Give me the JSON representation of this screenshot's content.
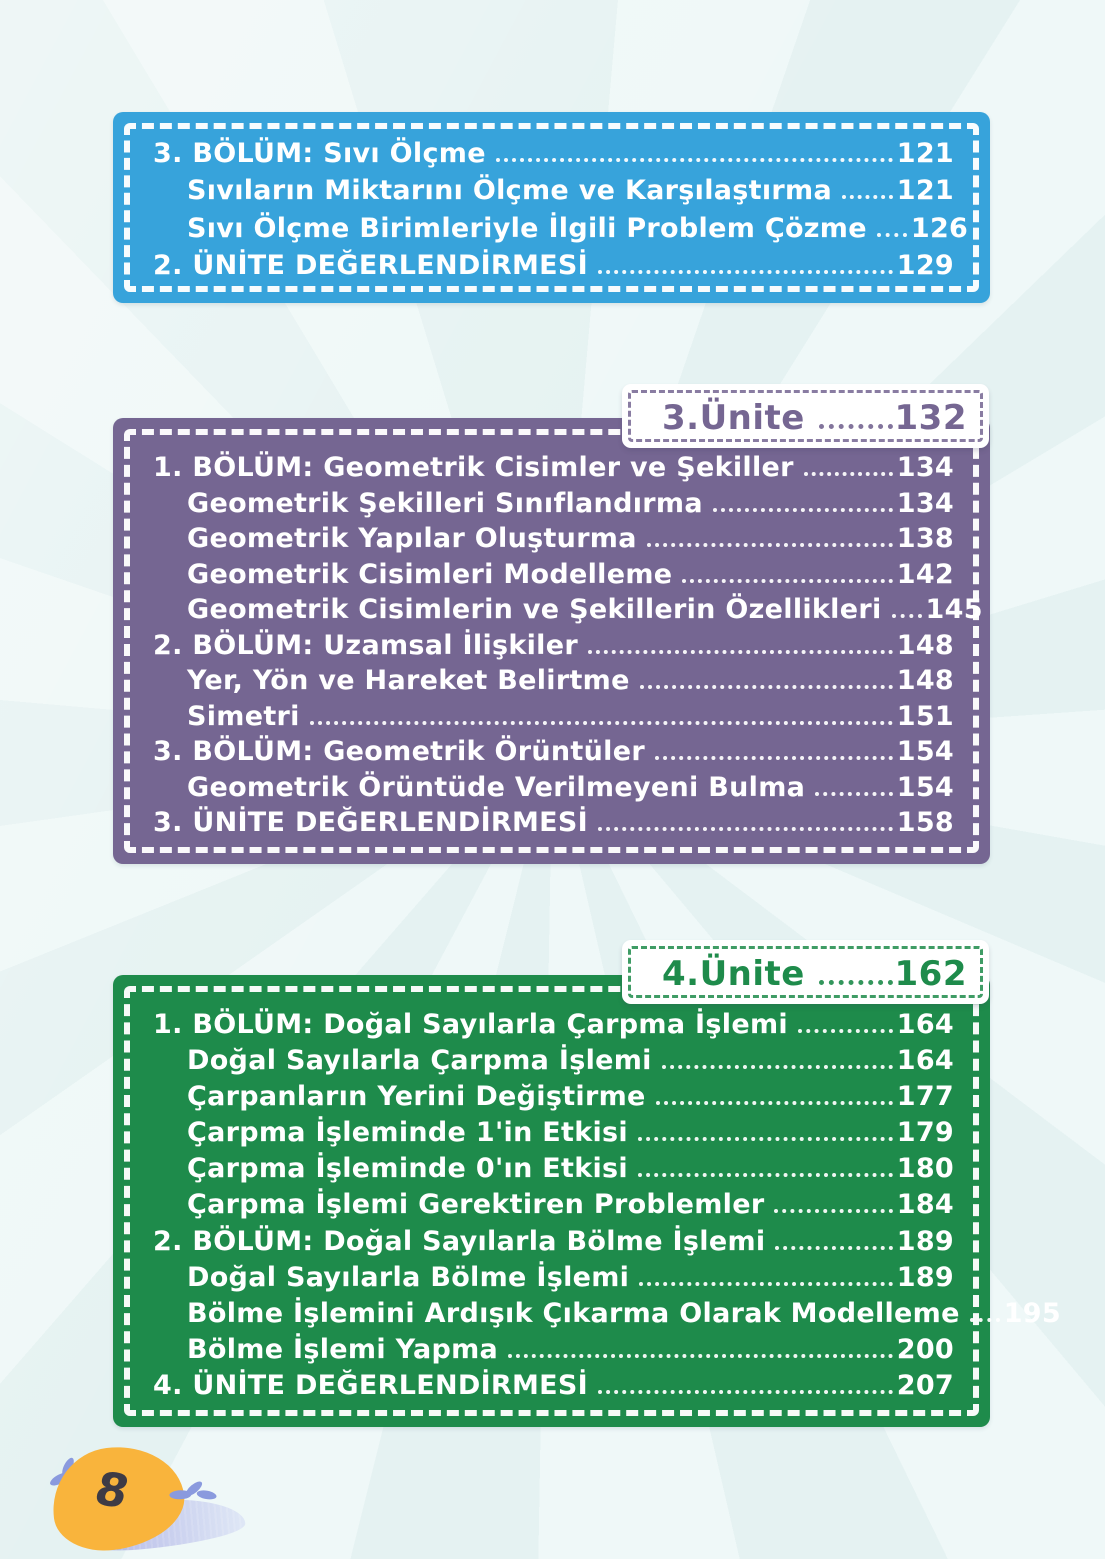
{
  "colors": {
    "background": "#edf6f5",
    "ray": "#e3f1f1",
    "unit2_blue": "#37a3db",
    "unit3_purple": "#756692",
    "unit4_green": "#1e8b4b",
    "page_blob_yellow": "#f9b43c",
    "page_number_text": "#3e3b45",
    "leaf_blue": "#8a9ade"
  },
  "sections": [
    {
      "name": "unit-2-remainder",
      "color": "#37a3db",
      "tab": null,
      "entries": [
        {
          "level": 1,
          "label": "3. BÖLÜM: Sıvı Ölçme",
          "page": "121"
        },
        {
          "level": 2,
          "label": "Sıvıların Miktarını Ölçme ve Karşılaştırma",
          "page": "121"
        },
        {
          "level": 2,
          "label": "Sıvı Ölçme Birimleriyle İlgili Problem Çözme",
          "page": "126"
        },
        {
          "level": 1,
          "label": "2. ÜNİTE DEĞERLENDİRMESİ",
          "page": "129"
        }
      ]
    },
    {
      "name": "unit-3",
      "color": "#756692",
      "tab": {
        "title": "3.Ünite",
        "page": "132"
      },
      "entries": [
        {
          "level": 1,
          "label": "1. BÖLÜM: Geometrik Cisimler ve Şekiller",
          "page": "134"
        },
        {
          "level": 2,
          "label": "Geometrik Şekilleri Sınıflandırma",
          "page": "134"
        },
        {
          "level": 2,
          "label": "Geometrik Yapılar Oluşturma",
          "page": "138"
        },
        {
          "level": 2,
          "label": "Geometrik Cisimleri Modelleme",
          "page": "142"
        },
        {
          "level": 2,
          "label": "Geometrik Cisimlerin ve Şekillerin Özellikleri",
          "page": "145"
        },
        {
          "level": 1,
          "label": "2. BÖLÜM: Uzamsal İlişkiler",
          "page": "148"
        },
        {
          "level": 2,
          "label": "Yer, Yön ve Hareket Belirtme",
          "page": "148"
        },
        {
          "level": 2,
          "label": "Simetri",
          "page": "151"
        },
        {
          "level": 1,
          "label": "3. BÖLÜM: Geometrik Örüntüler",
          "page": "154"
        },
        {
          "level": 2,
          "label": "Geometrik Örüntüde Verilmeyeni Bulma",
          "page": "154"
        },
        {
          "level": 1,
          "label": "3. ÜNİTE DEĞERLENDİRMESİ",
          "page": "158"
        }
      ]
    },
    {
      "name": "unit-4",
      "color": "#1e8b4b",
      "tab": {
        "title": "4.Ünite",
        "page": "162"
      },
      "entries": [
        {
          "level": 1,
          "label": "1. BÖLÜM: Doğal Sayılarla Çarpma İşlemi",
          "page": "164"
        },
        {
          "level": 2,
          "label": "Doğal Sayılarla Çarpma İşlemi",
          "page": "164"
        },
        {
          "level": 2,
          "label": "Çarpanların Yerini Değiştirme",
          "page": "177"
        },
        {
          "level": 2,
          "label": "Çarpma İşleminde 1'in Etkisi",
          "page": "179"
        },
        {
          "level": 2,
          "label": "Çarpma İşleminde 0'ın Etkisi",
          "page": "180"
        },
        {
          "level": 2,
          "label": "Çarpma İşlemi Gerektiren Problemler",
          "page": "184"
        },
        {
          "level": 1,
          "label": "2. BÖLÜM: Doğal Sayılarla Bölme İşlemi",
          "page": "189"
        },
        {
          "level": 2,
          "label": "Doğal Sayılarla Bölme İşlemi",
          "page": "189"
        },
        {
          "level": 2,
          "label": "Bölme İşlemini Ardışık Çıkarma Olarak Modelleme",
          "page": "195"
        },
        {
          "level": 2,
          "label": "Bölme İşlemi Yapma",
          "page": "200"
        },
        {
          "level": 1,
          "label": "4. ÜNİTE DEĞERLENDİRMESİ",
          "page": "207"
        }
      ]
    }
  ],
  "footer": {
    "page_number": "8"
  }
}
